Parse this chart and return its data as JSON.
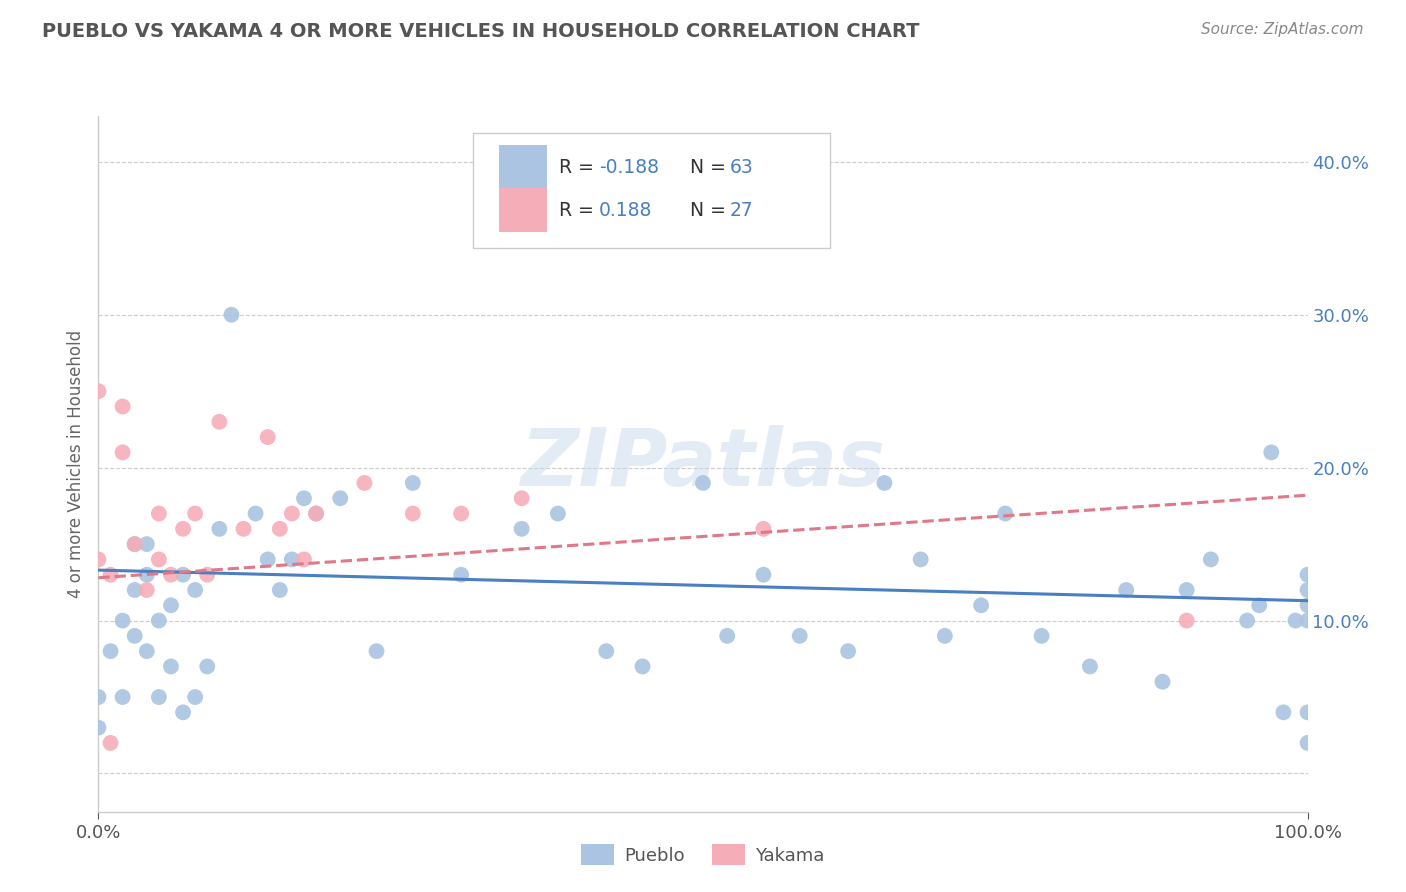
{
  "title": "PUEBLO VS YAKAMA 4 OR MORE VEHICLES IN HOUSEHOLD CORRELATION CHART",
  "source": "Source: ZipAtlas.com",
  "ylabel": "4 or more Vehicles in Household",
  "watermark": "ZIPatlas",
  "legend_pueblo_r": "-0.188",
  "legend_pueblo_n": "63",
  "legend_yakama_r": "0.188",
  "legend_yakama_n": "27",
  "pueblo_color": "#aac4e2",
  "yakama_color": "#f5adb8",
  "pueblo_line_color": "#4a7fc1",
  "yakama_line_color": "#e07888",
  "text_blue_color": "#4a7fc1",
  "xlim": [
    0.0,
    1.0
  ],
  "ylim": [
    -0.025,
    0.43
  ],
  "ytick_vals": [
    0.0,
    0.1,
    0.2,
    0.3,
    0.4
  ],
  "pueblo_scatter_x": [
    0.0,
    0.0,
    0.01,
    0.02,
    0.02,
    0.03,
    0.03,
    0.03,
    0.04,
    0.04,
    0.04,
    0.05,
    0.05,
    0.06,
    0.06,
    0.07,
    0.07,
    0.08,
    0.08,
    0.09,
    0.1,
    0.11,
    0.13,
    0.14,
    0.15,
    0.16,
    0.17,
    0.18,
    0.2,
    0.23,
    0.26,
    0.3,
    0.35,
    0.38,
    0.42,
    0.45,
    0.5,
    0.52,
    0.55,
    0.58,
    0.62,
    0.65,
    0.68,
    0.7,
    0.73,
    0.75,
    0.78,
    0.82,
    0.85,
    0.88,
    0.9,
    0.92,
    0.95,
    0.96,
    0.97,
    0.98,
    0.99,
    1.0,
    1.0,
    1.0,
    1.0,
    1.0,
    1.0
  ],
  "pueblo_scatter_y": [
    0.03,
    0.05,
    0.08,
    0.05,
    0.1,
    0.09,
    0.12,
    0.15,
    0.08,
    0.13,
    0.15,
    0.05,
    0.1,
    0.07,
    0.11,
    0.04,
    0.13,
    0.05,
    0.12,
    0.07,
    0.16,
    0.3,
    0.17,
    0.14,
    0.12,
    0.14,
    0.18,
    0.17,
    0.18,
    0.08,
    0.19,
    0.13,
    0.16,
    0.17,
    0.08,
    0.07,
    0.19,
    0.09,
    0.13,
    0.09,
    0.08,
    0.19,
    0.14,
    0.09,
    0.11,
    0.17,
    0.09,
    0.07,
    0.12,
    0.06,
    0.12,
    0.14,
    0.1,
    0.11,
    0.21,
    0.04,
    0.1,
    0.12,
    0.13,
    0.1,
    0.11,
    0.04,
    0.02
  ],
  "yakama_scatter_x": [
    0.0,
    0.0,
    0.01,
    0.01,
    0.02,
    0.02,
    0.03,
    0.04,
    0.05,
    0.05,
    0.06,
    0.07,
    0.08,
    0.09,
    0.1,
    0.12,
    0.14,
    0.15,
    0.16,
    0.17,
    0.18,
    0.22,
    0.26,
    0.3,
    0.35,
    0.55,
    0.9
  ],
  "yakama_scatter_y": [
    0.14,
    0.25,
    0.02,
    0.13,
    0.21,
    0.24,
    0.15,
    0.12,
    0.17,
    0.14,
    0.13,
    0.16,
    0.17,
    0.13,
    0.23,
    0.16,
    0.22,
    0.16,
    0.17,
    0.14,
    0.17,
    0.19,
    0.17,
    0.17,
    0.18,
    0.16,
    0.1
  ],
  "pueblo_trend_x": [
    0.0,
    1.0
  ],
  "pueblo_trend_y": [
    0.133,
    0.113
  ],
  "yakama_trend_x": [
    0.0,
    1.0
  ],
  "yakama_trend_y": [
    0.128,
    0.182
  ],
  "grid_color": "#cccccc",
  "background_color": "#ffffff",
  "spine_color": "#cccccc"
}
